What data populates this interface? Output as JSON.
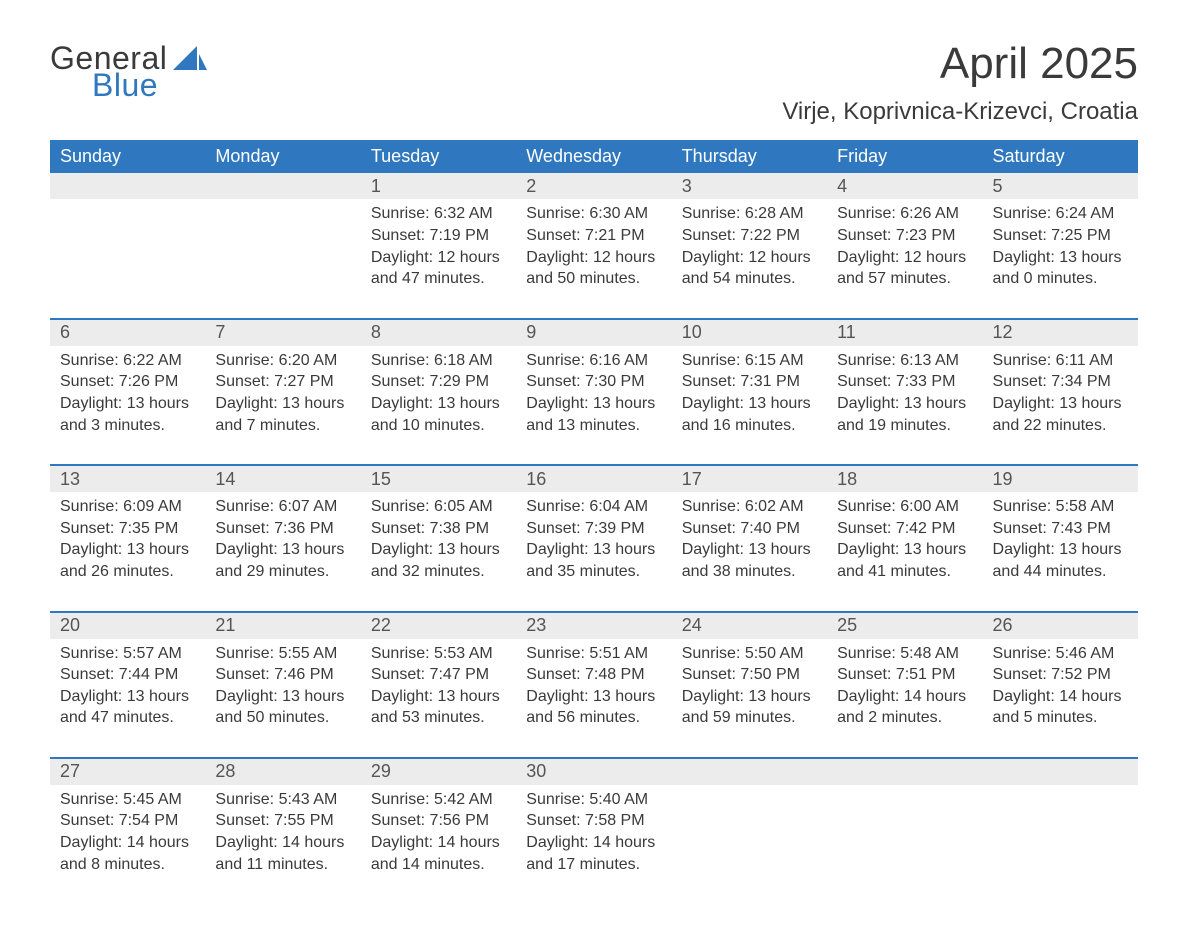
{
  "logo": {
    "word1": "General",
    "word2": "Blue",
    "sail_color": "#2f78bf",
    "text_color_gray": "#3a3a3a"
  },
  "header": {
    "title": "April 2025",
    "location": "Virje, Koprivnica-Krizevci, Croatia"
  },
  "calendar": {
    "type": "table",
    "header_bg": "#2f78bf",
    "header_fg": "#ffffff",
    "daynum_bg": "#ececec",
    "week_divider_color": "#2f78bf",
    "body_text_color": "#3a3a3a",
    "header_fontsize": 18,
    "daynum_fontsize": 18,
    "body_fontsize": 16,
    "day_names": [
      "Sunday",
      "Monday",
      "Tuesday",
      "Wednesday",
      "Thursday",
      "Friday",
      "Saturday"
    ],
    "weeks": [
      [
        null,
        null,
        {
          "n": "1",
          "sunrise": "6:32 AM",
          "sunset": "7:19 PM",
          "dl1": "Daylight: 12 hours",
          "dl2": "and 47 minutes."
        },
        {
          "n": "2",
          "sunrise": "6:30 AM",
          "sunset": "7:21 PM",
          "dl1": "Daylight: 12 hours",
          "dl2": "and 50 minutes."
        },
        {
          "n": "3",
          "sunrise": "6:28 AM",
          "sunset": "7:22 PM",
          "dl1": "Daylight: 12 hours",
          "dl2": "and 54 minutes."
        },
        {
          "n": "4",
          "sunrise": "6:26 AM",
          "sunset": "7:23 PM",
          "dl1": "Daylight: 12 hours",
          "dl2": "and 57 minutes."
        },
        {
          "n": "5",
          "sunrise": "6:24 AM",
          "sunset": "7:25 PM",
          "dl1": "Daylight: 13 hours",
          "dl2": "and 0 minutes."
        }
      ],
      [
        {
          "n": "6",
          "sunrise": "6:22 AM",
          "sunset": "7:26 PM",
          "dl1": "Daylight: 13 hours",
          "dl2": "and 3 minutes."
        },
        {
          "n": "7",
          "sunrise": "6:20 AM",
          "sunset": "7:27 PM",
          "dl1": "Daylight: 13 hours",
          "dl2": "and 7 minutes."
        },
        {
          "n": "8",
          "sunrise": "6:18 AM",
          "sunset": "7:29 PM",
          "dl1": "Daylight: 13 hours",
          "dl2": "and 10 minutes."
        },
        {
          "n": "9",
          "sunrise": "6:16 AM",
          "sunset": "7:30 PM",
          "dl1": "Daylight: 13 hours",
          "dl2": "and 13 minutes."
        },
        {
          "n": "10",
          "sunrise": "6:15 AM",
          "sunset": "7:31 PM",
          "dl1": "Daylight: 13 hours",
          "dl2": "and 16 minutes."
        },
        {
          "n": "11",
          "sunrise": "6:13 AM",
          "sunset": "7:33 PM",
          "dl1": "Daylight: 13 hours",
          "dl2": "and 19 minutes."
        },
        {
          "n": "12",
          "sunrise": "6:11 AM",
          "sunset": "7:34 PM",
          "dl1": "Daylight: 13 hours",
          "dl2": "and 22 minutes."
        }
      ],
      [
        {
          "n": "13",
          "sunrise": "6:09 AM",
          "sunset": "7:35 PM",
          "dl1": "Daylight: 13 hours",
          "dl2": "and 26 minutes."
        },
        {
          "n": "14",
          "sunrise": "6:07 AM",
          "sunset": "7:36 PM",
          "dl1": "Daylight: 13 hours",
          "dl2": "and 29 minutes."
        },
        {
          "n": "15",
          "sunrise": "6:05 AM",
          "sunset": "7:38 PM",
          "dl1": "Daylight: 13 hours",
          "dl2": "and 32 minutes."
        },
        {
          "n": "16",
          "sunrise": "6:04 AM",
          "sunset": "7:39 PM",
          "dl1": "Daylight: 13 hours",
          "dl2": "and 35 minutes."
        },
        {
          "n": "17",
          "sunrise": "6:02 AM",
          "sunset": "7:40 PM",
          "dl1": "Daylight: 13 hours",
          "dl2": "and 38 minutes."
        },
        {
          "n": "18",
          "sunrise": "6:00 AM",
          "sunset": "7:42 PM",
          "dl1": "Daylight: 13 hours",
          "dl2": "and 41 minutes."
        },
        {
          "n": "19",
          "sunrise": "5:58 AM",
          "sunset": "7:43 PM",
          "dl1": "Daylight: 13 hours",
          "dl2": "and 44 minutes."
        }
      ],
      [
        {
          "n": "20",
          "sunrise": "5:57 AM",
          "sunset": "7:44 PM",
          "dl1": "Daylight: 13 hours",
          "dl2": "and 47 minutes."
        },
        {
          "n": "21",
          "sunrise": "5:55 AM",
          "sunset": "7:46 PM",
          "dl1": "Daylight: 13 hours",
          "dl2": "and 50 minutes."
        },
        {
          "n": "22",
          "sunrise": "5:53 AM",
          "sunset": "7:47 PM",
          "dl1": "Daylight: 13 hours",
          "dl2": "and 53 minutes."
        },
        {
          "n": "23",
          "sunrise": "5:51 AM",
          "sunset": "7:48 PM",
          "dl1": "Daylight: 13 hours",
          "dl2": "and 56 minutes."
        },
        {
          "n": "24",
          "sunrise": "5:50 AM",
          "sunset": "7:50 PM",
          "dl1": "Daylight: 13 hours",
          "dl2": "and 59 minutes."
        },
        {
          "n": "25",
          "sunrise": "5:48 AM",
          "sunset": "7:51 PM",
          "dl1": "Daylight: 14 hours",
          "dl2": "and 2 minutes."
        },
        {
          "n": "26",
          "sunrise": "5:46 AM",
          "sunset": "7:52 PM",
          "dl1": "Daylight: 14 hours",
          "dl2": "and 5 minutes."
        }
      ],
      [
        {
          "n": "27",
          "sunrise": "5:45 AM",
          "sunset": "7:54 PM",
          "dl1": "Daylight: 14 hours",
          "dl2": "and 8 minutes."
        },
        {
          "n": "28",
          "sunrise": "5:43 AM",
          "sunset": "7:55 PM",
          "dl1": "Daylight: 14 hours",
          "dl2": "and 11 minutes."
        },
        {
          "n": "29",
          "sunrise": "5:42 AM",
          "sunset": "7:56 PM",
          "dl1": "Daylight: 14 hours",
          "dl2": "and 14 minutes."
        },
        {
          "n": "30",
          "sunrise": "5:40 AM",
          "sunset": "7:58 PM",
          "dl1": "Daylight: 14 hours",
          "dl2": "and 17 minutes."
        },
        null,
        null,
        null
      ]
    ],
    "labels": {
      "sunrise_prefix": "Sunrise: ",
      "sunset_prefix": "Sunset: "
    }
  }
}
